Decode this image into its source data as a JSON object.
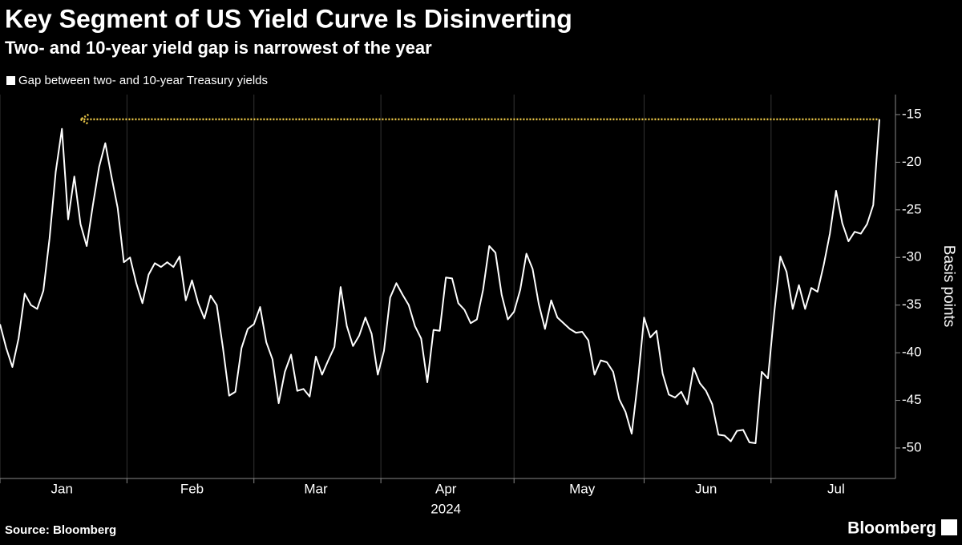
{
  "chart_data": {
    "type": "line",
    "title": "Key Segment of US Yield Curve Is Disinverting",
    "subtitle": "Two- and 10-year yield gap is narrowest of the year",
    "y_label": "Basis points",
    "x_label": "2024",
    "categories": [
      null,
      null,
      null,
      null,
      null,
      null,
      null,
      null,
      null,
      null,
      "Jan",
      null,
      null,
      null,
      null,
      null,
      null,
      null,
      null,
      null,
      null,
      null,
      null,
      null,
      null,
      null,
      null,
      null,
      null,
      null,
      null,
      "Feb",
      null,
      null,
      null,
      null,
      null,
      null,
      null,
      null,
      null,
      null,
      null,
      null,
      null,
      null,
      null,
      null,
      null,
      null,
      null,
      "Mar",
      null,
      null,
      null,
      null,
      null,
      null,
      null,
      null,
      null,
      null,
      null,
      null,
      null,
      null,
      null,
      null,
      null,
      null,
      null,
      null,
      "Apr",
      null,
      null,
      null,
      null,
      null,
      null,
      null,
      null,
      null,
      null,
      null,
      null,
      null,
      null,
      null,
      null,
      null,
      null,
      null,
      null,
      null,
      "May",
      null,
      null,
      null,
      null,
      null,
      null,
      null,
      null,
      null,
      null,
      null,
      null,
      null,
      null,
      null,
      null,
      null,
      null,
      null,
      "Jun",
      null,
      null,
      null,
      null,
      null,
      null,
      null,
      null,
      null,
      null,
      null,
      null,
      null,
      null,
      null,
      null,
      null,
      null,
      null,
      null,
      "Jul",
      null,
      null,
      null,
      null,
      null,
      null,
      null
    ],
    "series": [
      {
        "name": "Gap between two- and 10-year Treasury yields",
        "color": "#ffffff",
        "values": [
          -37,
          -39.5,
          -41.5,
          -38.5,
          -33.8,
          -35,
          -35.4,
          -33.5,
          -28,
          -21,
          -16.5,
          -26,
          -21.5,
          -26.5,
          -28.8,
          -24.5,
          -20.5,
          -18,
          -21.5,
          -24.8,
          -30.5,
          -30,
          -32.7,
          -34.8,
          -31.8,
          -30.6,
          -31,
          -30.5,
          -31,
          -29.9,
          -34.5,
          -32.4,
          -34.8,
          -36.4,
          -34,
          -35,
          -39.5,
          -44.5,
          -44.1,
          -39.5,
          -37.5,
          -37,
          -35.2,
          -38.9,
          -40.7,
          -45.3,
          -42,
          -40.2,
          -44,
          -43.8,
          -44.6,
          -40.4,
          -42.3,
          -40.8,
          -39.4,
          -33.1,
          -37.2,
          -39.3,
          -38.2,
          -36.3,
          -38,
          -42.3,
          -39.8,
          -34.2,
          -32.7,
          -33.9,
          -35,
          -37.2,
          -38.5,
          -43.1,
          -37.6,
          -37.7,
          -32.1,
          -32.2,
          -34.8,
          -35.5,
          -36.9,
          -36.5,
          -33.4,
          -28.8,
          -29.5,
          -33.9,
          -36.5,
          -35.7,
          -33.4,
          -29.6,
          -31.2,
          -34.9,
          -37.5,
          -34.5,
          -36.3,
          -36.9,
          -37.5,
          -37.9,
          -37.8,
          -38.7,
          -42.3,
          -40.8,
          -41,
          -42,
          -44.9,
          -46.2,
          -48.5,
          -43,
          -36.3,
          -38.4,
          -37.7,
          -42.2,
          -44.4,
          -44.7,
          -44.1,
          -45.4,
          -41.6,
          -43.2,
          -44,
          -45.4,
          -48.6,
          -48.7,
          -49.3,
          -48.2,
          -48.1,
          -49.4,
          -49.5,
          -42,
          -42.7,
          -35.9,
          -29.9,
          -31.5,
          -35.4,
          -32.9,
          -35.4,
          -33.2,
          -33.6,
          -30.8,
          -27.5,
          -23,
          -26.4,
          -28.3,
          -27.3,
          -27.5,
          -26.5,
          -24.5,
          -15.5
        ]
      }
    ],
    "reference_line": {
      "value": -15.5,
      "color": "#e8c547"
    },
    "ylim": [
      -53.2,
      -12.9
    ],
    "yticks": [
      -15,
      -20,
      -25,
      -30,
      -35,
      -40,
      -45,
      -50
    ],
    "grid": true,
    "source": "Source: Bloomberg",
    "brand": "Bloomberg"
  }
}
